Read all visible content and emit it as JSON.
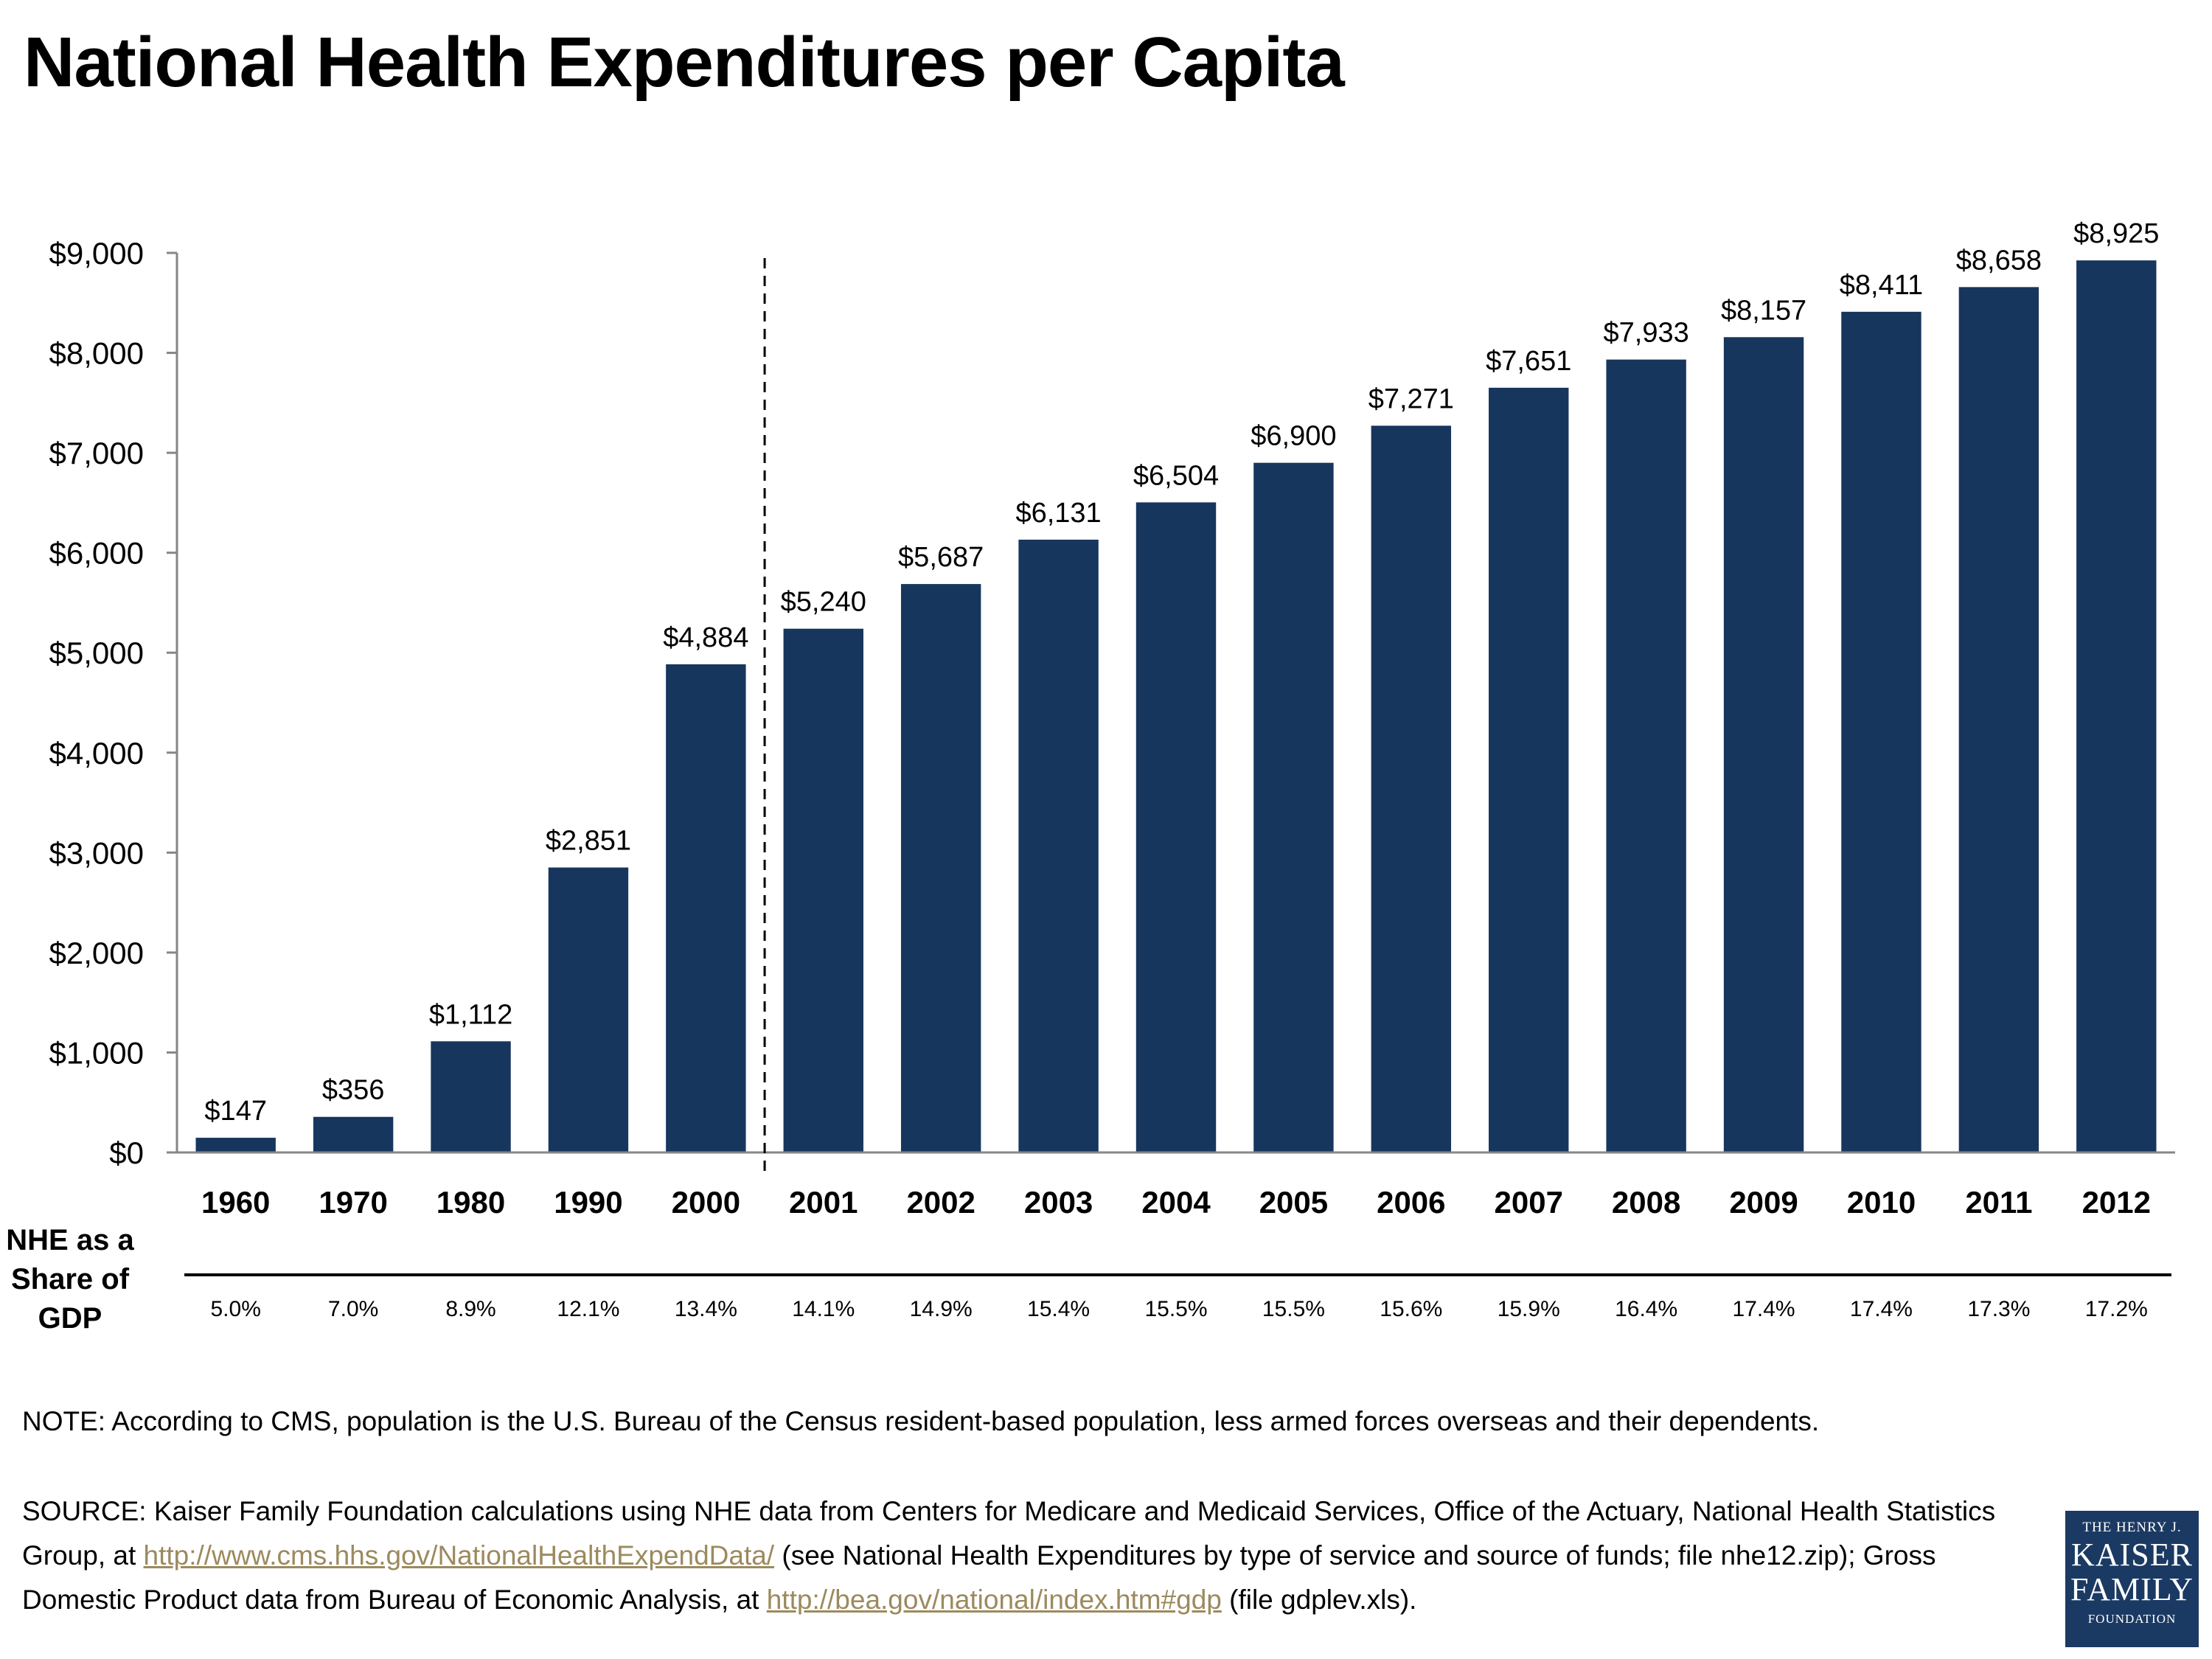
{
  "title": "National Health Expenditures per Capita",
  "colors": {
    "bar": "#17365d",
    "link": "#9c8a5e",
    "logo_bg": "#1b3a63"
  },
  "chart_data": {
    "type": "bar",
    "title": "National Health Expenditures per Capita",
    "xlabel": "",
    "ylabel": "",
    "ylim": [
      0,
      9000
    ],
    "yticks": [
      0,
      1000,
      2000,
      3000,
      4000,
      5000,
      6000,
      7000,
      8000,
      9000
    ],
    "ytick_labels": [
      "$0",
      "$1,000",
      "$2,000",
      "$3,000",
      "$4,000",
      "$5,000",
      "$6,000",
      "$7,000",
      "$8,000",
      "$9,000"
    ],
    "categories": [
      "1960",
      "1970",
      "1980",
      "1990",
      "2000",
      "2001",
      "2002",
      "2003",
      "2004",
      "2005",
      "2006",
      "2007",
      "2008",
      "2009",
      "2010",
      "2011",
      "2012"
    ],
    "values": [
      147,
      356,
      1112,
      2851,
      4884,
      5240,
      5687,
      6131,
      6504,
      6900,
      7271,
      7651,
      7933,
      8157,
      8411,
      8658,
      8925
    ],
    "value_labels": [
      "$147",
      "$356",
      "$1,112",
      "$2,851",
      "$4,884",
      "$5,240",
      "$5,687",
      "$6,131",
      "$6,504",
      "$6,900",
      "$7,271",
      "$7,651",
      "$7,933",
      "$8,157",
      "$8,411",
      "$8,658",
      "$8,925"
    ],
    "divider_after": "2000",
    "share_row": {
      "label_lines": [
        "NHE as a",
        "Share of",
        "GDP"
      ],
      "values": [
        "5.0%",
        "7.0%",
        "8.9%",
        "12.1%",
        "13.4%",
        "14.1%",
        "14.9%",
        "15.4%",
        "15.5%",
        "15.5%",
        "15.6%",
        "15.9%",
        "16.4%",
        "17.4%",
        "17.4%",
        "17.3%",
        "17.2%"
      ]
    }
  },
  "note": "NOTE: According to CMS, population is the U.S. Bureau of the Census resident-based population, less armed forces overseas and their dependents.",
  "source": {
    "part1": "SOURCE: Kaiser Family Foundation calculations using NHE data from Centers for Medicare and Medicaid Services, Office of the Actuary, National Health Statistics Group, at ",
    "link1": "http://www.cms.hhs.gov/NationalHealthExpendData/",
    "part2": " (see National Health Expenditures by type of service and source of funds; file nhe12.zip); Gross Domestic Product data from Bureau of Economic Analysis, at ",
    "link2": "http://bea.gov/national/index.htm#gdp",
    "part3": " (file gdplev.xls)."
  },
  "logo": {
    "line1": "THE HENRY J.",
    "line2": "KAISER",
    "line3": "FAMILY",
    "line4": "FOUNDATION"
  }
}
